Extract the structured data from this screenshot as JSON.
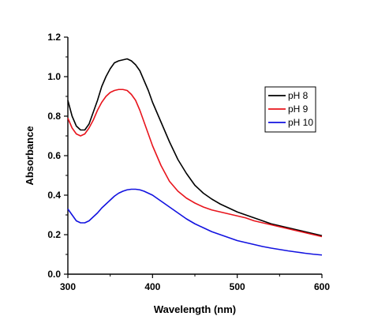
{
  "chart_data": {
    "type": "line",
    "title": "",
    "xlabel": "Wavelength (nm)",
    "ylabel": "Absorbance",
    "xlim": [
      300,
      600
    ],
    "ylim": [
      0.0,
      1.2
    ],
    "xticks": [
      300,
      400,
      500,
      600
    ],
    "yticks": [
      0.0,
      0.2,
      0.4,
      0.6,
      0.8,
      1.0,
      1.2
    ],
    "xtick_labels": [
      "300",
      "400",
      "500",
      "600"
    ],
    "ytick_labels": [
      "0.0",
      "0.2",
      "0.4",
      "0.6",
      "0.8",
      "1.0",
      "1.2"
    ],
    "grid": false,
    "legend_position": "top-right",
    "series": [
      {
        "name": "pH 8",
        "color": "#000000",
        "x": [
          300,
          305,
          310,
          315,
          320,
          325,
          330,
          335,
          340,
          345,
          350,
          355,
          360,
          365,
          370,
          375,
          380,
          385,
          390,
          395,
          400,
          410,
          420,
          430,
          440,
          450,
          460,
          470,
          480,
          490,
          500,
          510,
          520,
          530,
          540,
          550,
          560,
          570,
          580,
          590,
          600
        ],
        "y": [
          0.88,
          0.8,
          0.75,
          0.73,
          0.73,
          0.76,
          0.82,
          0.88,
          0.95,
          1.0,
          1.04,
          1.07,
          1.08,
          1.085,
          1.09,
          1.08,
          1.06,
          1.03,
          0.98,
          0.93,
          0.87,
          0.77,
          0.67,
          0.58,
          0.51,
          0.45,
          0.41,
          0.38,
          0.355,
          0.335,
          0.315,
          0.3,
          0.285,
          0.27,
          0.255,
          0.245,
          0.235,
          0.225,
          0.215,
          0.205,
          0.195
        ]
      },
      {
        "name": "pH 9",
        "color": "#e8141c",
        "x": [
          300,
          305,
          310,
          315,
          320,
          325,
          330,
          335,
          340,
          345,
          350,
          355,
          360,
          365,
          370,
          375,
          380,
          385,
          390,
          395,
          400,
          410,
          420,
          430,
          440,
          450,
          460,
          470,
          480,
          490,
          500,
          510,
          520,
          530,
          540,
          550,
          560,
          570,
          580,
          590,
          600
        ],
        "y": [
          0.79,
          0.74,
          0.71,
          0.7,
          0.71,
          0.74,
          0.78,
          0.83,
          0.87,
          0.9,
          0.92,
          0.93,
          0.935,
          0.935,
          0.93,
          0.91,
          0.88,
          0.83,
          0.77,
          0.71,
          0.65,
          0.55,
          0.47,
          0.42,
          0.385,
          0.36,
          0.34,
          0.325,
          0.315,
          0.305,
          0.295,
          0.285,
          0.27,
          0.26,
          0.25,
          0.24,
          0.23,
          0.22,
          0.21,
          0.2,
          0.19
        ]
      },
      {
        "name": "pH 10",
        "color": "#1212e0",
        "x": [
          300,
          305,
          310,
          315,
          320,
          325,
          330,
          335,
          340,
          345,
          350,
          355,
          360,
          365,
          370,
          375,
          380,
          385,
          390,
          395,
          400,
          410,
          420,
          430,
          440,
          450,
          460,
          470,
          480,
          490,
          500,
          510,
          520,
          530,
          540,
          550,
          560,
          570,
          580,
          590,
          600
        ],
        "y": [
          0.33,
          0.3,
          0.27,
          0.26,
          0.26,
          0.27,
          0.29,
          0.31,
          0.335,
          0.355,
          0.375,
          0.395,
          0.41,
          0.42,
          0.427,
          0.43,
          0.43,
          0.427,
          0.42,
          0.41,
          0.4,
          0.37,
          0.34,
          0.31,
          0.28,
          0.255,
          0.235,
          0.215,
          0.2,
          0.185,
          0.17,
          0.16,
          0.15,
          0.14,
          0.132,
          0.125,
          0.118,
          0.112,
          0.106,
          0.101,
          0.097
        ]
      }
    ]
  }
}
